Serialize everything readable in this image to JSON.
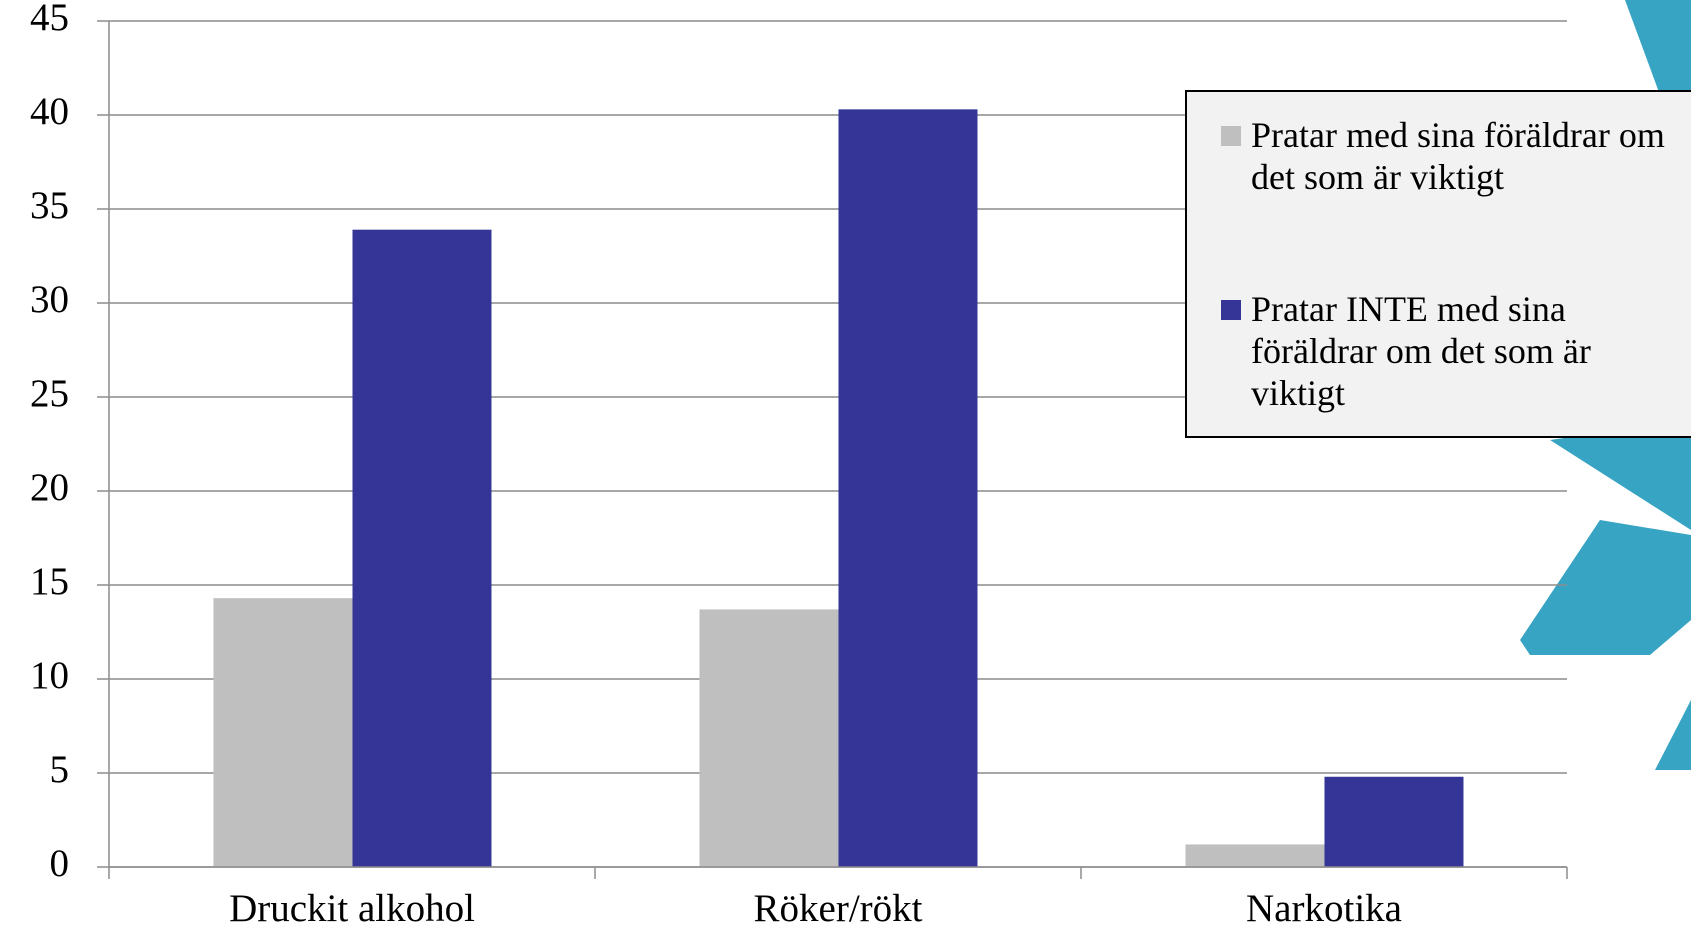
{
  "chart_data": {
    "type": "bar",
    "categories": [
      "Druckit alkohol",
      "Röker/rökt",
      "Narkotika"
    ],
    "series": [
      {
        "name": "Pratar med sina föräldrar om det som är viktigt",
        "color": "#bfbfbf",
        "values": [
          14.3,
          13.7,
          1.2
        ]
      },
      {
        "name": "Pratar INTE med sina föräldrar om det som är viktigt",
        "color": "#353597",
        "values": [
          33.9,
          40.3,
          4.8
        ]
      }
    ],
    "ylim": [
      0,
      45
    ],
    "yticks": [
      0,
      5,
      10,
      15,
      20,
      25,
      30,
      35,
      40,
      45
    ],
    "grid": true,
    "legend": "right"
  }
}
